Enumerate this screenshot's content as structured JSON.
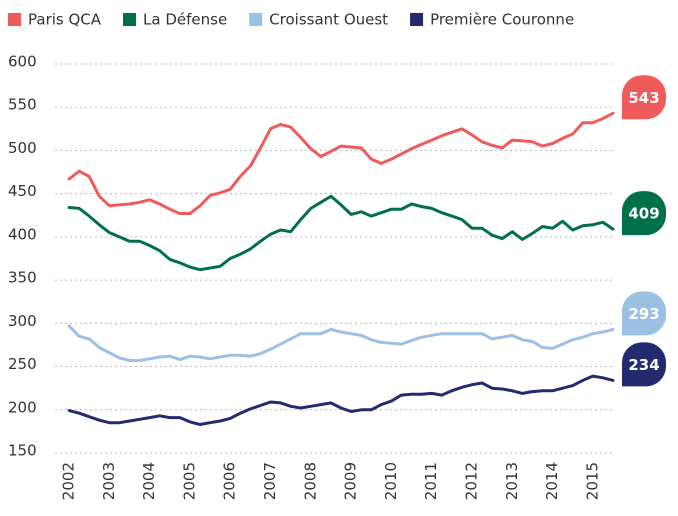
{
  "chart_data": {
    "type": "line",
    "x": [
      2002,
      2002.25,
      2002.5,
      2002.75,
      2003,
      2003.25,
      2003.5,
      2003.75,
      2004,
      2004.25,
      2004.5,
      2004.75,
      2005,
      2005.25,
      2005.5,
      2005.75,
      2006,
      2006.25,
      2006.5,
      2006.75,
      2007,
      2007.25,
      2007.5,
      2007.75,
      2008,
      2008.25,
      2008.5,
      2008.75,
      2009,
      2009.25,
      2009.5,
      2009.75,
      2010,
      2010.25,
      2010.5,
      2010.75,
      2011,
      2011.25,
      2011.5,
      2011.75,
      2012,
      2012.25,
      2012.5,
      2012.75,
      2013,
      2013.25,
      2013.5,
      2013.75,
      2014,
      2014.25,
      2014.5,
      2014.75,
      2015,
      2015.25,
      2015.5
    ],
    "series": [
      {
        "name": "Paris QCA",
        "color": "#ef5b5b",
        "values": [
          467,
          476,
          470,
          447,
          436,
          437,
          438,
          440,
          443,
          438,
          432,
          427,
          427,
          436,
          448,
          451,
          455,
          470,
          482,
          503,
          525,
          530,
          527,
          515,
          502,
          493,
          499,
          505,
          504,
          503,
          490,
          485,
          490,
          496,
          502,
          507,
          512,
          517,
          521,
          525,
          518,
          510,
          506,
          503,
          512,
          511,
          510,
          505,
          508,
          514,
          519,
          532,
          532,
          537,
          543
        ]
      },
      {
        "name": "La Défense",
        "color": "#00704a",
        "values": [
          434,
          433,
          424,
          414,
          405,
          400,
          395,
          395,
          390,
          384,
          374,
          370,
          365,
          362,
          364,
          366,
          375,
          380,
          386,
          395,
          403,
          408,
          406,
          420,
          433,
          440,
          447,
          437,
          426,
          429,
          424,
          428,
          432,
          432,
          438,
          435,
          433,
          428,
          424,
          420,
          410,
          410,
          402,
          398,
          406,
          397,
          404,
          412,
          410,
          418,
          408,
          413,
          414,
          417,
          409
        ]
      },
      {
        "name": "Croissant Ouest",
        "color": "#9bc0e3",
        "values": [
          297,
          285,
          282,
          272,
          266,
          260,
          257,
          257,
          259,
          261,
          262,
          258,
          262,
          261,
          259,
          261,
          263,
          263,
          262,
          265,
          270,
          276,
          282,
          288,
          288,
          288,
          293,
          290,
          288,
          286,
          281,
          278,
          277,
          276,
          280,
          284,
          286,
          288,
          288,
          288,
          288,
          288,
          282,
          284,
          286,
          281,
          279,
          272,
          271,
          276,
          281,
          284,
          288,
          290,
          293
        ]
      },
      {
        "name": "Première Couronne",
        "color": "#232a6e",
        "values": [
          199,
          196,
          192,
          188,
          185,
          185,
          187,
          189,
          191,
          193,
          191,
          191,
          186,
          183,
          185,
          187,
          190,
          196,
          201,
          205,
          209,
          208,
          204,
          202,
          204,
          206,
          208,
          202,
          198,
          200,
          200,
          206,
          210,
          217,
          218,
          218,
          219,
          217,
          222,
          226,
          229,
          231,
          225,
          224,
          222,
          219,
          221,
          222,
          222,
          225,
          228,
          234,
          239,
          237,
          234
        ]
      }
    ],
    "xlim": [
      2001.65,
      2015.6
    ],
    "xticks": [
      2002,
      2003,
      2004,
      2005,
      2006,
      2007,
      2008,
      2009,
      2010,
      2011,
      2012,
      2013,
      2014,
      2015
    ],
    "ylim": [
      150,
      600
    ],
    "yticks": [
      150,
      200,
      250,
      300,
      350,
      400,
      450,
      500,
      550,
      600
    ],
    "grid": true,
    "legend": "top"
  }
}
